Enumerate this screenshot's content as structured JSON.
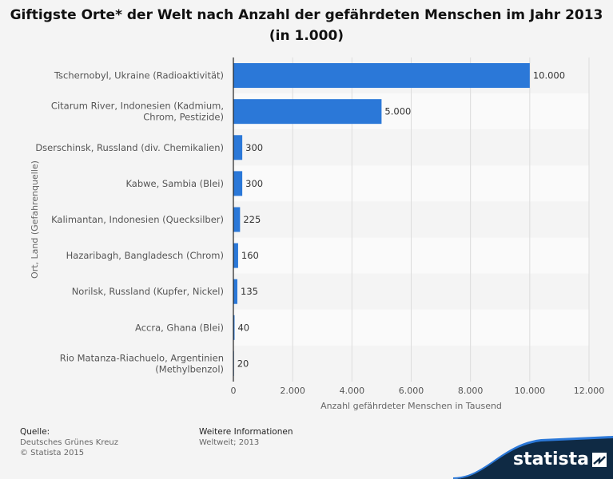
{
  "title": "Giftigste Orte* der Welt nach Anzahl der gefährdeten Menschen im Jahr 2013 (in 1.000)",
  "chart_data": {
    "type": "bar",
    "orientation": "horizontal",
    "categories": [
      "Tschernobyl, Ukraine (Radioaktivität)",
      "Citarum River, Indonesien (Kadmium, Chrom, Pestizide)",
      "Dserschinsk, Russland (div. Chemikalien)",
      "Kabwe, Sambia (Blei)",
      "Kalimantan, Indonesien (Quecksilber)",
      "Hazaribagh, Bangladesch (Chrom)",
      "Norilsk, Russland (Kupfer, Nickel)",
      "Accra, Ghana (Blei)",
      "Rio Matanza-Riachuelo, Argentinien (Methylbenzol)"
    ],
    "category_lines": [
      [
        "Tschernobyl, Ukraine (Radioaktivität)"
      ],
      [
        "Citarum River, Indonesien (Kadmium,",
        "Chrom, Pestizide)"
      ],
      [
        "Dserschinsk, Russland (div. Chemikalien)"
      ],
      [
        "Kabwe, Sambia (Blei)"
      ],
      [
        "Kalimantan, Indonesien (Quecksilber)"
      ],
      [
        "Hazaribagh, Bangladesch (Chrom)"
      ],
      [
        "Norilsk, Russland (Kupfer, Nickel)"
      ],
      [
        "Accra, Ghana (Blei)"
      ],
      [
        "Rio Matanza-Riachuelo, Argentinien",
        "(Methylbenzol)"
      ]
    ],
    "values": [
      10000,
      5000,
      300,
      300,
      225,
      160,
      135,
      40,
      20
    ],
    "value_labels": [
      "10.000",
      "5.000",
      "300",
      "300",
      "225",
      "160",
      "135",
      "40",
      "20"
    ],
    "xlim": [
      0,
      12000
    ],
    "ticks": [
      0,
      2000,
      4000,
      6000,
      8000,
      10000,
      12000
    ],
    "tick_labels": [
      "0",
      "2.000",
      "4.000",
      "6.000",
      "8.000",
      "10.000",
      "12.000"
    ],
    "xlabel": "Anzahl gefährdeter Menschen in Tausend",
    "ylabel": "Ort, Land (Gefahrenquelle)",
    "grid": true,
    "bar_color": "#2b78d8"
  },
  "footer": {
    "source_heading": "Quelle:",
    "source_lines": [
      "Deutsches Grünes Kreuz",
      "© Statista 2015"
    ],
    "info_heading": "Weitere Informationen",
    "info_lines": [
      "Weltweit; 2013"
    ]
  },
  "brand": {
    "name": "statista",
    "bg_color": "#0f2a44",
    "accent_color": "#2b78d8"
  }
}
